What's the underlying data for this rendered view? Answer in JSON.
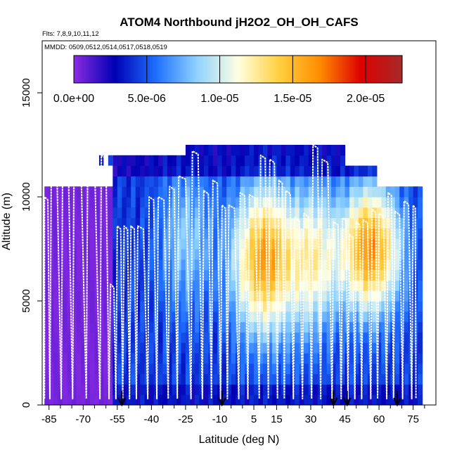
{
  "chart_data": {
    "type": "heatmap",
    "title": "ATOM4 Northbound jH2O2_OH_OH_CAFS",
    "flights_label": "Flts: 7,8,9,10,11,12",
    "dates_label": "MMDD: 0509,0512,0514,0517,0518,0519",
    "xlabel": "Latitude (deg N)",
    "ylabel": "Altitude (m)",
    "xlim": [
      -88,
      85
    ],
    "ylim": [
      0,
      17500
    ],
    "x_ticks": [
      -85,
      -70,
      -55,
      -40,
      -25,
      -10,
      5,
      15,
      30,
      45,
      60,
      75
    ],
    "x_minor_ticks": [
      -80,
      -75,
      -65,
      -60,
      -50,
      -45,
      -35,
      -30,
      -20,
      -15,
      -5,
      0,
      10,
      20,
      25,
      35,
      40,
      50,
      55,
      65,
      70,
      80
    ],
    "y_ticks": [
      0,
      5000,
      10000,
      15000
    ],
    "colorbar": {
      "min": 0,
      "max": 2.25e-05,
      "ticks": [
        0,
        5e-06,
        1e-05,
        1.5e-05,
        2e-05
      ],
      "tick_labels": [
        "0.0e+00",
        "5.0e-06",
        "1.0e-05",
        "1.5e-05",
        "2.0e-05"
      ],
      "colors": [
        "#8a2be2",
        "#0000b3",
        "#1e6fff",
        "#8fd3ff",
        "#ffffe0",
        "#ffd040",
        "#ff8c00",
        "#dd0000",
        "#a52a2a"
      ]
    },
    "bin_width_deg": 2,
    "bin_height_m": 500,
    "envelope": [
      {
        "lat_from": -87,
        "lat_to": -56,
        "alt_from": 0,
        "alt_to": 10500
      },
      {
        "lat_from": -56,
        "lat_to": -24,
        "alt_from": 0,
        "alt_to": 12000
      },
      {
        "lat_from": -24,
        "lat_to": 25,
        "alt_from": 0,
        "alt_to": 12500
      },
      {
        "lat_from": 25,
        "lat_to": 46,
        "alt_from": 0,
        "alt_to": 12500
      },
      {
        "lat_from": 46,
        "lat_to": 60,
        "alt_from": 0,
        "alt_to": 11500
      },
      {
        "lat_from": 60,
        "lat_to": 80,
        "alt_from": 0,
        "alt_to": 10500
      }
    ],
    "profile_latitudes": [
      -87,
      -84,
      -79,
      -74,
      -68,
      -62,
      -58,
      -55,
      -52,
      -49,
      -46,
      -41,
      -37,
      -32,
      -28,
      -22,
      -17,
      -13,
      -9,
      -6,
      -1,
      3,
      8,
      12,
      16,
      19,
      23,
      27,
      31,
      35,
      40,
      44,
      47,
      50,
      53,
      57,
      60,
      64,
      67,
      71,
      75
    ],
    "profile_tops": [
      10000,
      11300,
      11600,
      11900,
      12000,
      12000,
      5800,
      8600,
      8600,
      8600,
      8600,
      10000,
      10000,
      10500,
      11000,
      12200,
      10300,
      10800,
      9600,
      9600,
      10200,
      10100,
      12000,
      11800,
      10800,
      10300,
      9000,
      9200,
      12500,
      11800,
      8800,
      9000,
      8200,
      8800,
      8900,
      9400,
      9200,
      10200,
      9300,
      9800,
      9600
    ],
    "arrow_latitudes": [
      -53,
      -9,
      40,
      46,
      68
    ],
    "cells": [
      {
        "lat": -62,
        "alt": 11750,
        "v": 3.5e-06
      },
      {
        "lat": -58,
        "alt": 11750,
        "v": 4.5e-06
      }
    ]
  }
}
